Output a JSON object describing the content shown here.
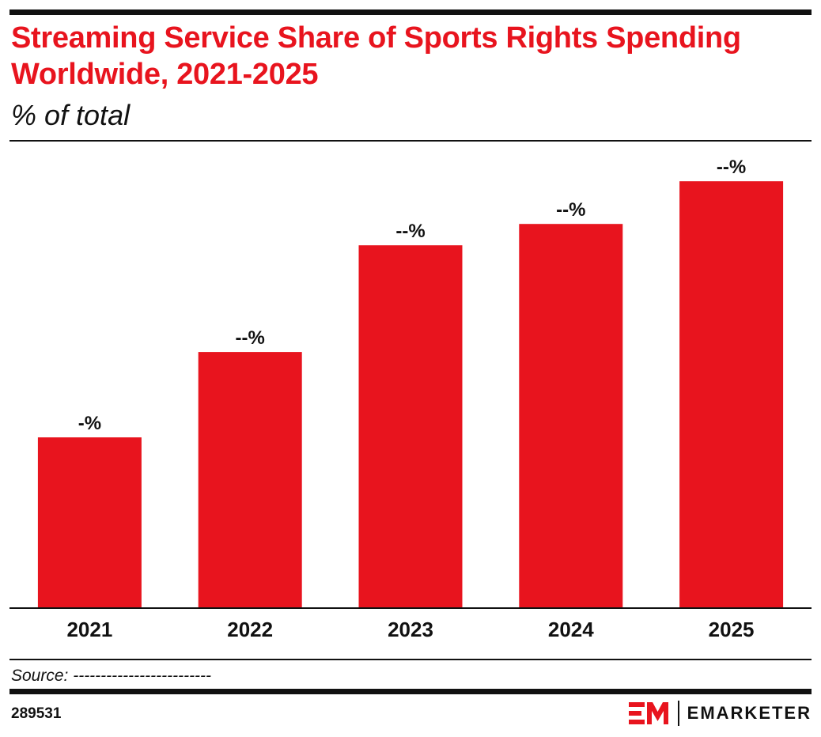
{
  "header": {
    "title": "Streaming Service Share of Sports Rights Spending Worldwide, 2021-2025",
    "subtitle": "% of total"
  },
  "footer": {
    "source": "Source: -------------------------",
    "chart_id": "289531",
    "brand": "EMARKETER"
  },
  "colors": {
    "accent": "#e8141e",
    "text": "#111111",
    "background": "#ffffff"
  },
  "chart_data": {
    "type": "bar",
    "title": "Streaming Service Share of Sports Rights Spending Worldwide, 2021-2025",
    "subtitle": "% of total",
    "categories": [
      "2021",
      "2022",
      "2023",
      "2024",
      "2025"
    ],
    "values": [
      2.0,
      3.0,
      4.25,
      4.5,
      5.0
    ],
    "data_labels": [
      "-%",
      "--%",
      "--%",
      "--%",
      "--%"
    ],
    "ylim": [
      0,
      5.4
    ],
    "grid": false,
    "bar_color": "#e8141e"
  }
}
